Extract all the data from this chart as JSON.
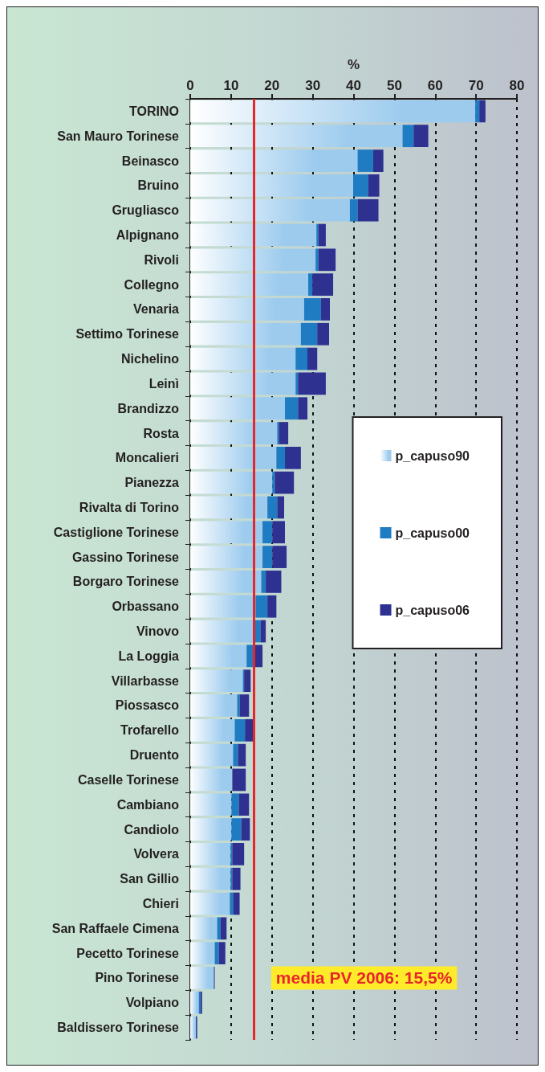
{
  "chart_data": {
    "type": "bar",
    "orientation": "horizontal",
    "stacked": true,
    "xlabel": "%",
    "categories": [
      "TORINO",
      "San Mauro Torinese",
      "Beinasco",
      "Bruino",
      "Grugliasco",
      "Alpignano",
      "Rivoli",
      "Collegno",
      "Venaria",
      "Settimo Torinese",
      "Nichelino",
      "Leinì",
      "Brandizzo",
      "Rosta",
      "Moncalieri",
      "Pianezza",
      "Rivalta di Torino",
      "Castiglione Torinese",
      "Gassino Torinese",
      "Borgaro Torinese",
      "Orbassano",
      "Vinovo",
      "La Loggia",
      "Villarbasse",
      "Piossasco",
      "Trofarello",
      "Druento",
      "Caselle Torinese",
      "Cambiano",
      "Candiolo",
      "Volvera",
      "San Gillio",
      "Chieri",
      "San Raffaele Cimena",
      "Pecetto Torinese",
      "Pino Torinese",
      "Volpiano",
      "Baldissero Torinese"
    ],
    "series": [
      {
        "name": "p_capuso90",
        "color": "#9ccbee",
        "values": [
          69.8,
          52.0,
          41.0,
          39.9,
          39.1,
          30.9,
          30.7,
          28.9,
          27.9,
          27.1,
          25.8,
          25.8,
          23.2,
          21.3,
          21.1,
          20.1,
          18.9,
          17.7,
          17.7,
          17.4,
          16.0,
          15.8,
          13.8,
          12.9,
          11.5,
          10.9,
          10.5,
          10.3,
          10.1,
          10.1,
          9.9,
          9.9,
          9.7,
          6.6,
          6.0,
          5.8,
          2.1,
          1.4
        ]
      },
      {
        "name": "p_capuso00",
        "color": "#1f7bc2",
        "values": [
          1.0,
          2.7,
          3.8,
          3.7,
          1.9,
          0.5,
          0.7,
          1.0,
          4.1,
          4.0,
          2.9,
          0.6,
          3.2,
          0.4,
          2.1,
          0.6,
          2.4,
          2.4,
          2.4,
          1.1,
          2.9,
          1.4,
          2.0,
          0.3,
          0.6,
          2.5,
          1.2,
          0,
          1.8,
          2.4,
          0.4,
          0.4,
          0.8,
          0.8,
          1.0,
          0,
          0.4,
          0
        ]
      },
      {
        "name": "p_capuso06",
        "color": "#2e3190",
        "values": [
          1.5,
          3.6,
          2.5,
          2.7,
          5.1,
          1.8,
          4.2,
          5.1,
          2.2,
          2.9,
          2.4,
          6.8,
          2.3,
          2.3,
          3.9,
          4.7,
          1.7,
          3.1,
          3.5,
          3.8,
          2.2,
          1.3,
          1.9,
          1.6,
          2.3,
          2.4,
          1.9,
          3.3,
          2.5,
          2.1,
          2.9,
          2.0,
          1.6,
          1.5,
          1.6,
          0.2,
          0.4,
          0.3
        ]
      }
    ],
    "xlim": [
      0,
      80
    ],
    "xticks": [
      0,
      10,
      20,
      30,
      40,
      50,
      60,
      70,
      80
    ],
    "grid": "x",
    "legend": "right",
    "ref_lines": [
      {
        "axis": "x",
        "value": 15.5,
        "label": "media PV 2006: 15,5%",
        "color": "#e8262a"
      }
    ]
  }
}
